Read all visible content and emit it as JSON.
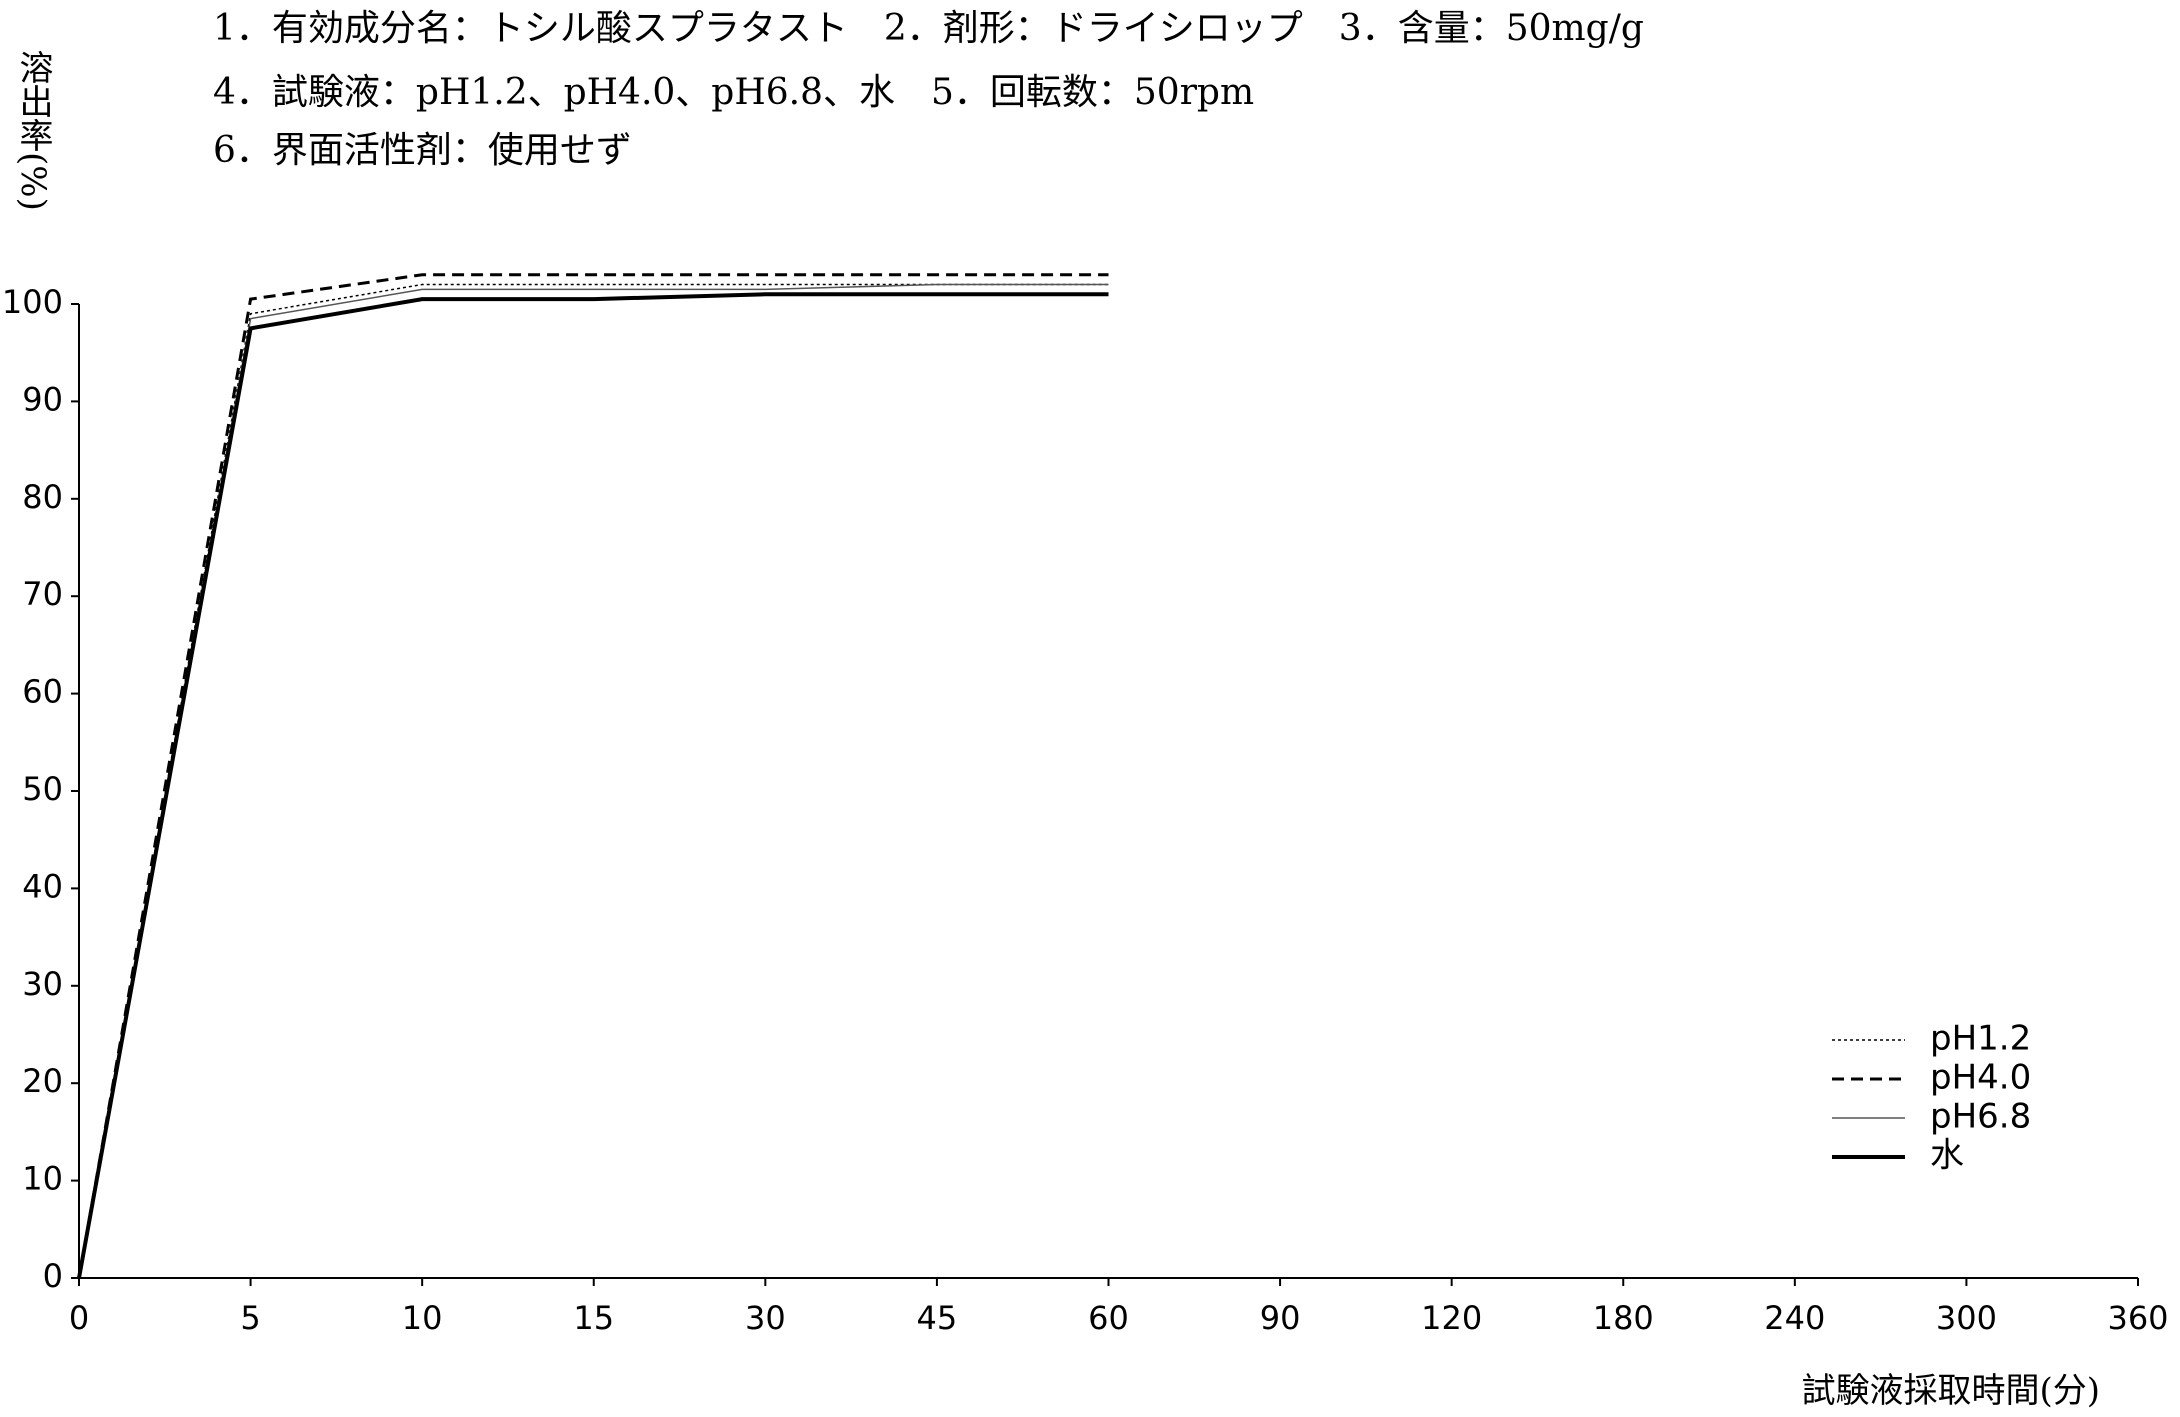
{
  "chart_data": {
    "type": "line",
    "title_lines": [
      "1．有効成分名：トシル酸スプラタスト　2．剤形：ドライシロップ　3．含量：50mg/g",
      "4．試験液：pH1.2、pH4.0、pH6.8、水　5．回転数：50rpm",
      "6．界面活性剤：使用せず"
    ],
    "y_label": "溶出率(%)",
    "x_label": "試験液採取時間(分)",
    "categories": [
      "0",
      "5",
      "10",
      "15",
      "30",
      "45",
      "60",
      "90",
      "120",
      "180",
      "240",
      "300",
      "360"
    ],
    "series": [
      {
        "name": "pH1.2",
        "color": "#000000",
        "style": "dotted",
        "width": 1.5,
        "values": [
          0,
          99,
          102,
          102,
          102,
          102,
          102,
          null,
          null,
          null,
          null,
          null,
          null
        ]
      },
      {
        "name": "pH4.0",
        "color": "#000000",
        "style": "dashed",
        "width": 3,
        "values": [
          0,
          100.5,
          103,
          103,
          103,
          103,
          103,
          null,
          null,
          null,
          null,
          null,
          null
        ]
      },
      {
        "name": "pH6.8",
        "color": "#555555",
        "style": "solid",
        "width": 1.5,
        "values": [
          0,
          98.5,
          101.5,
          101.5,
          101.5,
          102,
          102,
          null,
          null,
          null,
          null,
          null,
          null
        ]
      },
      {
        "name": "水",
        "color": "#000000",
        "style": "solid",
        "width": 4,
        "values": [
          0,
          97.5,
          100.5,
          100.5,
          101,
          101,
          101,
          null,
          null,
          null,
          null,
          null,
          null
        ]
      }
    ],
    "ylim": [
      0,
      100
    ],
    "yticks": [
      0,
      10,
      20,
      30,
      40,
      50,
      60,
      70,
      80,
      90,
      100
    ],
    "grid": false,
    "legend": "lower right"
  }
}
